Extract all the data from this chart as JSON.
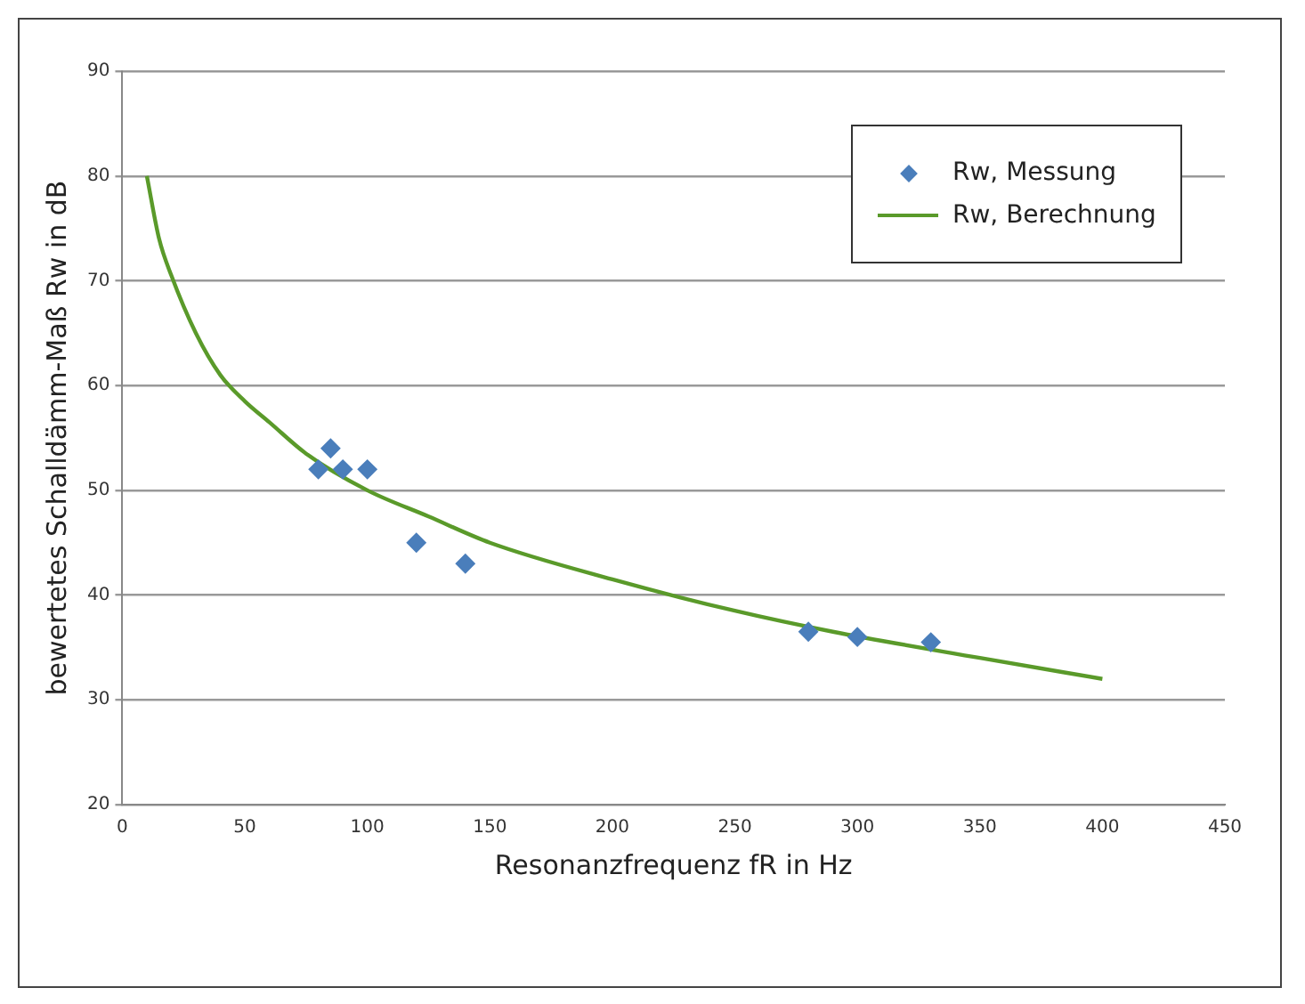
{
  "chart_data": {
    "type": "scatter",
    "xlabel": "Resonanzfrequenz fR in Hz",
    "ylabel": "bewertetes Schalldämm-Maß Rw in dB",
    "xlim": [
      0,
      450
    ],
    "xticks": [
      0,
      50,
      100,
      150,
      200,
      250,
      300,
      350,
      400,
      450
    ],
    "ylim": [
      20,
      90
    ],
    "yticks": [
      20,
      30,
      40,
      50,
      60,
      70,
      80,
      90
    ],
    "grid": "y",
    "legend": "top right",
    "series": [
      {
        "name": "Rw, Messung",
        "type": "scatter",
        "marker": "diamond",
        "color": "#4a7ebb",
        "x": [
          80,
          85,
          90,
          100,
          120,
          140,
          280,
          300,
          330
        ],
        "values": [
          52,
          54,
          52,
          52,
          45,
          43,
          36.5,
          36,
          35.5
        ]
      },
      {
        "name": "Rw, Berechnung",
        "type": "line",
        "marker": "none",
        "color": "#5a9a2a",
        "x": [
          10,
          15,
          20,
          30,
          40,
          50,
          60,
          75,
          100,
          125,
          150,
          200,
          250,
          290,
          350,
          400
        ],
        "values": [
          80,
          74,
          70.5,
          65,
          61,
          58.5,
          56.5,
          53.5,
          50,
          47.5,
          45,
          41.5,
          38.5,
          36.5,
          34,
          32
        ]
      }
    ]
  }
}
